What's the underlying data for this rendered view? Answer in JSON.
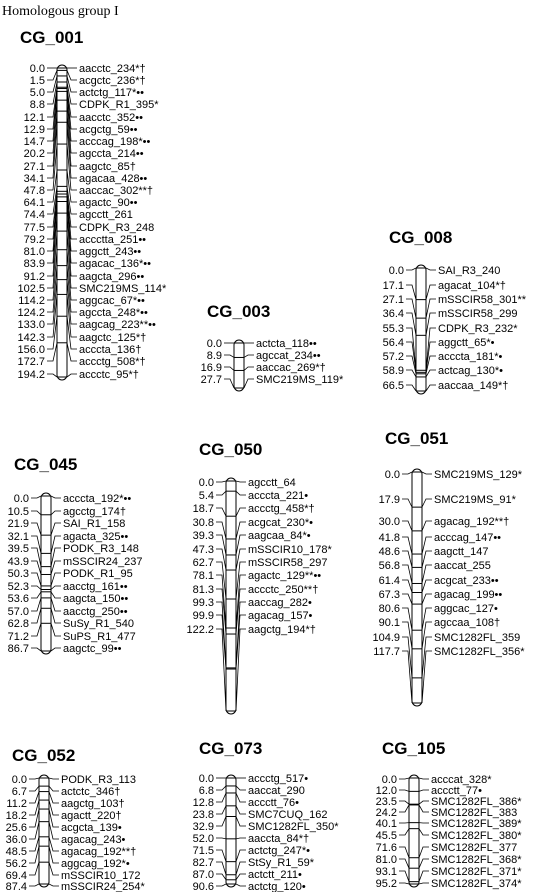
{
  "header": "Homologous group I",
  "groups": [
    {
      "name": "CG_001",
      "markers": [
        {
          "pos": "0.0",
          "label": "aacctc_234*†"
        },
        {
          "pos": "1.5",
          "label": "acgctc_236*†"
        },
        {
          "pos": "5.0",
          "label": "actctg_117*••"
        },
        {
          "pos": "8.8",
          "label": "CDPK_R1_395*"
        },
        {
          "pos": "12.1",
          "label": "aacctc_352••"
        },
        {
          "pos": "12.9",
          "label": "acgctg_59••"
        },
        {
          "pos": "14.7",
          "label": "acccag_198*••"
        },
        {
          "pos": "20.2",
          "label": "agccta_214••"
        },
        {
          "pos": "27.1",
          "label": "aagctc_85†"
        },
        {
          "pos": "34.1",
          "label": "agacaa_428••"
        },
        {
          "pos": "47.8",
          "label": "aaccac_302**†"
        },
        {
          "pos": "64.1",
          "label": "agactc_90••"
        },
        {
          "pos": "74.4",
          "label": "agcctt_261"
        },
        {
          "pos": "77.5",
          "label": "CDPK_R3_248"
        },
        {
          "pos": "79.2",
          "label": "accctta_251••"
        },
        {
          "pos": "81.0",
          "label": "aggctt_243••"
        },
        {
          "pos": "83.9",
          "label": "agacac_136*••"
        },
        {
          "pos": "91.2",
          "label": "aagcta_296••"
        },
        {
          "pos": "102.5",
          "label": "SMC219MS_114*"
        },
        {
          "pos": "114.2",
          "label": "aggcac_67*••"
        },
        {
          "pos": "124.2",
          "label": "agccta_248*••"
        },
        {
          "pos": "133.0",
          "label": "aagcag_223**••"
        },
        {
          "pos": "142.3",
          "label": "aagctc_125*†"
        },
        {
          "pos": "156.0",
          "label": "acccta_136†"
        },
        {
          "pos": "172.7",
          "label": "accctg_508*†"
        },
        {
          "pos": "194.2",
          "label": "accctc_95*†"
        }
      ]
    },
    {
      "name": "CG_003",
      "markers": [
        {
          "pos": "0.0",
          "label": "actcta_118••"
        },
        {
          "pos": "8.9",
          "label": "agccat_234••"
        },
        {
          "pos": "16.9",
          "label": "aaccac_269*†"
        },
        {
          "pos": "27.7",
          "label": "SMC219MS_119*"
        }
      ]
    },
    {
      "name": "CG_008",
      "markers": [
        {
          "pos": "0.0",
          "label": "SAI_R3_240"
        },
        {
          "pos": "17.1",
          "label": "agacat_104*†"
        },
        {
          "pos": "27.1",
          "label": "mSSCIR58_301**"
        },
        {
          "pos": "36.4",
          "label": "mSSCIR58_299"
        },
        {
          "pos": "55.3",
          "label": "CDPK_R3_232*"
        },
        {
          "pos": "56.4",
          "label": "aggctt_65*•"
        },
        {
          "pos": "57.2",
          "label": "acccta_181*•"
        },
        {
          "pos": "58.9",
          "label": "actcag_130*•"
        },
        {
          "pos": "66.5",
          "label": "aaccaa_149*†"
        }
      ]
    },
    {
      "name": "CG_045",
      "markers": [
        {
          "pos": "0.0",
          "label": "acccta_192*••"
        },
        {
          "pos": "10.5",
          "label": "agcctg_174†"
        },
        {
          "pos": "21.9",
          "label": "SAI_R1_158"
        },
        {
          "pos": "32.1",
          "label": "agacta_325••"
        },
        {
          "pos": "39.5",
          "label": "PODK_R3_148"
        },
        {
          "pos": "43.9",
          "label": "mSSCIR24_237"
        },
        {
          "pos": "50.3",
          "label": "PODK_R1_95"
        },
        {
          "pos": "52.3",
          "label": "aacctg_161••"
        },
        {
          "pos": "53.6",
          "label": "aagcta_150••"
        },
        {
          "pos": "57.0",
          "label": "aacctg_250••"
        },
        {
          "pos": "62.8",
          "label": "SuSy_R1_540"
        },
        {
          "pos": "71.2",
          "label": "SuPS_R1_477"
        },
        {
          "pos": "86.7",
          "label": "aagctc_99••"
        }
      ]
    },
    {
      "name": "CG_050",
      "markers": [
        {
          "pos": "0.0",
          "label": "agcctt_64"
        },
        {
          "pos": "5.4",
          "label": "acccta_221•"
        },
        {
          "pos": "18.7",
          "label": "accctg_458*†"
        },
        {
          "pos": "30.8",
          "label": "acgcat_230*•"
        },
        {
          "pos": "39.3",
          "label": "aagcaa_84*•"
        },
        {
          "pos": "47.3",
          "label": "mSSCIR10_178*"
        },
        {
          "pos": "62.7",
          "label": "mSSCIR58_297"
        },
        {
          "pos": "78.1",
          "label": "agactc_129**••"
        },
        {
          "pos": "81.3",
          "label": "accctc_250**†"
        },
        {
          "pos": "99.3",
          "label": "aaccag_282•"
        },
        {
          "pos": "99.9",
          "label": "agacag_157•"
        },
        {
          "pos": "122.2",
          "label": "aagctg_194*†"
        }
      ]
    },
    {
      "name": "CG_051",
      "markers": [
        {
          "pos": "0.0",
          "label": "SMC219MS_129*"
        },
        {
          "pos": "17.9",
          "label": "SMC219MS_91*"
        },
        {
          "pos": "30.0",
          "label": "agacag_192**†"
        },
        {
          "pos": "41.8",
          "label": "acccag_147••"
        },
        {
          "pos": "48.6",
          "label": "aagctt_147"
        },
        {
          "pos": "56.8",
          "label": "aaccat_255"
        },
        {
          "pos": "61.4",
          "label": "acgcat_233••"
        },
        {
          "pos": "67.3",
          "label": "agacag_199••"
        },
        {
          "pos": "80.6",
          "label": "aggcac_127•"
        },
        {
          "pos": "90.1",
          "label": "agccaa_108†"
        },
        {
          "pos": "104.9",
          "label": "SMC1282FL_359"
        },
        {
          "pos": "117.7",
          "label": "SMC1282FL_356*"
        }
      ]
    },
    {
      "name": "CG_052",
      "markers": [
        {
          "pos": "0.0",
          "label": "PODK_R3_113"
        },
        {
          "pos": "6.7",
          "label": "actctc_346†"
        },
        {
          "pos": "11.2",
          "label": "aagctg_103†"
        },
        {
          "pos": "18.2",
          "label": "agactt_220†"
        },
        {
          "pos": "25.6",
          "label": "acgcta_139•"
        },
        {
          "pos": "36.0",
          "label": "agacag_243•"
        },
        {
          "pos": "48.5",
          "label": "agacag_192**†"
        },
        {
          "pos": "56.2",
          "label": "aggcag_192*•"
        },
        {
          "pos": "69.4",
          "label": "mSSCIR10_172"
        },
        {
          "pos": "87.4",
          "label": "mSSCIR24_254*"
        }
      ]
    },
    {
      "name": "CG_073",
      "markers": [
        {
          "pos": "0.0",
          "label": "accctg_517•"
        },
        {
          "pos": "6.8",
          "label": "aaccat_290"
        },
        {
          "pos": "12.8",
          "label": "accctt_76•"
        },
        {
          "pos": "23.8",
          "label": "SMC7CUQ_162"
        },
        {
          "pos": "32.9",
          "label": "SMC1282FL_350*"
        },
        {
          "pos": "52.0",
          "label": "aaccta_84*†"
        },
        {
          "pos": "71.5",
          "label": "actctg_247*•"
        },
        {
          "pos": "82.7",
          "label": "StSy_R1_59*"
        },
        {
          "pos": "87.0",
          "label": "actctt_211•"
        },
        {
          "pos": "90.6",
          "label": "actctg_120•"
        }
      ]
    },
    {
      "name": "CG_105",
      "markers": [
        {
          "pos": "0.0",
          "label": "acccat_328*"
        },
        {
          "pos": "12.0",
          "label": "accctt_77•"
        },
        {
          "pos": "23.5",
          "label": "SMC1282FL_386*"
        },
        {
          "pos": "24.2",
          "label": "SMC1282FL_383"
        },
        {
          "pos": "40.1",
          "label": "SMC1282FL_389*"
        },
        {
          "pos": "45.5",
          "label": "SMC1282FL_380*"
        },
        {
          "pos": "71.6",
          "label": "SMC1282FL_377"
        },
        {
          "pos": "81.0",
          "label": "SMC1282FL_368*"
        },
        {
          "pos": "93.1",
          "label": "SMC1282FL_371*"
        },
        {
          "pos": "95.2",
          "label": "SMC1282FL_374*"
        }
      ]
    }
  ]
}
